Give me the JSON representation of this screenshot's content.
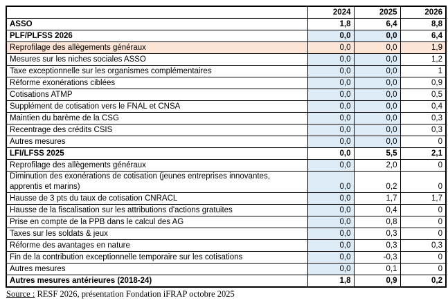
{
  "colors": {
    "shaded_cell": "#DDEBF7",
    "highlight_row": "#FCE4D6",
    "border": "#000000",
    "background": "#ffffff"
  },
  "chart_data": {
    "type": "table",
    "columns": [
      "",
      "2024",
      "2025",
      "2026"
    ],
    "rows": [
      {
        "label": "ASSO",
        "values": [
          "1,8",
          "6,4",
          "8,8"
        ],
        "bold": true,
        "highlight": false,
        "shaded": [
          false,
          false,
          false
        ]
      },
      {
        "label": "PLF/PLFSS 2026",
        "values": [
          "0,0",
          "0,0",
          "6,4"
        ],
        "bold": true,
        "highlight": false,
        "shaded": [
          true,
          true,
          false
        ]
      },
      {
        "label": "Reprofilage des allègements généraux",
        "values": [
          "0,0",
          "0,0",
          "1,9"
        ],
        "bold": false,
        "highlight": true,
        "shaded": [
          false,
          false,
          false
        ]
      },
      {
        "label": "Mesures sur les niches sociales ASSO",
        "values": [
          "0,0",
          "0,0",
          "1,2"
        ],
        "bold": false,
        "highlight": false,
        "shaded": [
          true,
          true,
          false
        ]
      },
      {
        "label": "Taxe exceptionnelle sur les organismes complémentaires",
        "values": [
          "0,0",
          "0,0",
          "1"
        ],
        "bold": false,
        "highlight": false,
        "shaded": [
          true,
          true,
          false
        ]
      },
      {
        "label": "Réforme exonérations ciblées",
        "values": [
          "0,0",
          "0,0",
          "0,9"
        ],
        "bold": false,
        "highlight": false,
        "shaded": [
          true,
          true,
          false
        ]
      },
      {
        "label": "Cotisations ATMP",
        "values": [
          "0,0",
          "0,0",
          "0,5"
        ],
        "bold": false,
        "highlight": false,
        "shaded": [
          true,
          true,
          false
        ]
      },
      {
        "label": "Supplément de cotisation vers le FNAL et CNSA",
        "values": [
          "0,0",
          "0,0",
          "0,4"
        ],
        "bold": false,
        "highlight": false,
        "shaded": [
          true,
          true,
          false
        ]
      },
      {
        "label": "Maintien du barème de la CSG",
        "values": [
          "0,0",
          "0,0",
          "0,3"
        ],
        "bold": false,
        "highlight": false,
        "shaded": [
          true,
          true,
          false
        ]
      },
      {
        "label": "Recentrage des crédits CSIS",
        "values": [
          "0,0",
          "0,0",
          "0,3"
        ],
        "bold": false,
        "highlight": false,
        "shaded": [
          true,
          true,
          false
        ]
      },
      {
        "label": "Autres mesures",
        "values": [
          "0,0",
          "0,0",
          "0"
        ],
        "bold": false,
        "highlight": false,
        "shaded": [
          true,
          true,
          false
        ]
      },
      {
        "label": "LFI/LFSS 2025",
        "values": [
          "0,0",
          "5,5",
          "2,1"
        ],
        "bold": true,
        "highlight": false,
        "shaded": [
          false,
          false,
          false
        ]
      },
      {
        "label": "Reprofilage des allègements généraux",
        "values": [
          "0,0",
          "2,0",
          "0"
        ],
        "bold": false,
        "highlight": false,
        "shaded": [
          true,
          false,
          false
        ]
      },
      {
        "label": "Diminution des exonérations de cotisation (jeunes entreprises innovantes, apprentis et marins)",
        "values": [
          "0,0",
          "0,2",
          "0"
        ],
        "bold": false,
        "highlight": false,
        "shaded": [
          true,
          false,
          false
        ]
      },
      {
        "label": "Hausse de 3 pts du taux de cotisation CNRACL",
        "values": [
          "0,0",
          "1,7",
          "1,7"
        ],
        "bold": false,
        "highlight": false,
        "shaded": [
          true,
          false,
          false
        ]
      },
      {
        "label": "Hausse de la fiscalisation sur les attributions d'actions gratuites",
        "values": [
          "0,0",
          "0,4",
          "0"
        ],
        "bold": false,
        "highlight": false,
        "shaded": [
          true,
          false,
          false
        ]
      },
      {
        "label": "Prise en compte de la PPB dans le calcul des AG",
        "values": [
          "0,0",
          "0,8",
          "0"
        ],
        "bold": false,
        "highlight": false,
        "shaded": [
          true,
          false,
          false
        ]
      },
      {
        "label": "Taxes sur les soldats & jeux",
        "values": [
          "0,0",
          "0,3",
          "0"
        ],
        "bold": false,
        "highlight": false,
        "shaded": [
          true,
          false,
          false
        ]
      },
      {
        "label": "Réforme des avantages en nature",
        "values": [
          "0,0",
          "0,3",
          "0,3"
        ],
        "bold": false,
        "highlight": false,
        "shaded": [
          true,
          false,
          false
        ]
      },
      {
        "label": "Fin de la contribution exceptionnelle temporaire sur les cotisations",
        "values": [
          "0,0",
          "-0,3",
          "0"
        ],
        "bold": false,
        "highlight": false,
        "shaded": [
          true,
          false,
          false
        ]
      },
      {
        "label": "Autres mesures",
        "values": [
          "0,0",
          "0,1",
          "0"
        ],
        "bold": false,
        "highlight": false,
        "shaded": [
          true,
          false,
          false
        ]
      },
      {
        "label": "Autres mesures antérieures (2018-24)",
        "values": [
          "1,8",
          "0,9",
          "0,2"
        ],
        "bold": true,
        "highlight": false,
        "shaded": [
          false,
          false,
          false
        ]
      }
    ]
  },
  "footer": {
    "source_label": "Source :",
    "source_text": " RESF 2026, présentation Fondation iFRAP octobre 2025"
  }
}
